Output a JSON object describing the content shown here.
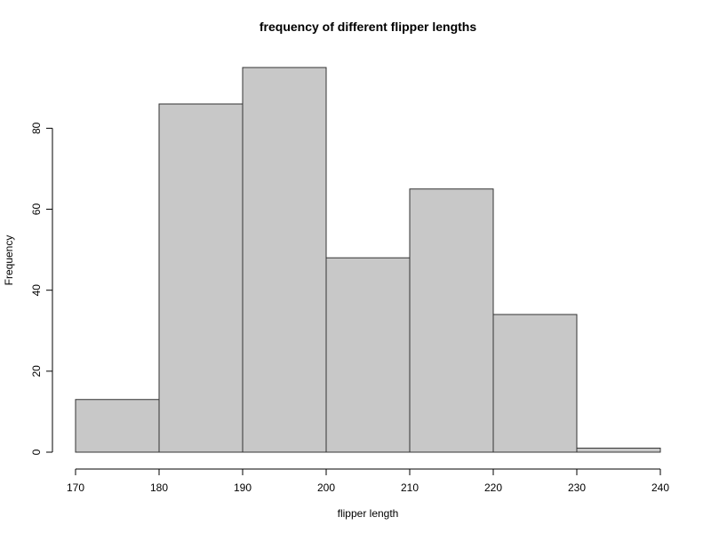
{
  "chart_data": {
    "type": "bar",
    "title": "frequency of different flipper lengths",
    "xlabel": "flipper length",
    "ylabel": "Frequency",
    "bin_edges": [
      170,
      180,
      190,
      200,
      210,
      220,
      230,
      240
    ],
    "values": [
      13,
      86,
      95,
      48,
      65,
      34,
      1
    ],
    "xlim": [
      170,
      240
    ],
    "ylim": [
      0,
      95
    ],
    "x_ticks": [
      170,
      180,
      190,
      200,
      210,
      220,
      230,
      240
    ],
    "y_ticks": [
      0,
      20,
      40,
      60,
      80
    ],
    "grid": false,
    "bar_color": "#c8c8c8",
    "bar_border_color": "#333333"
  }
}
